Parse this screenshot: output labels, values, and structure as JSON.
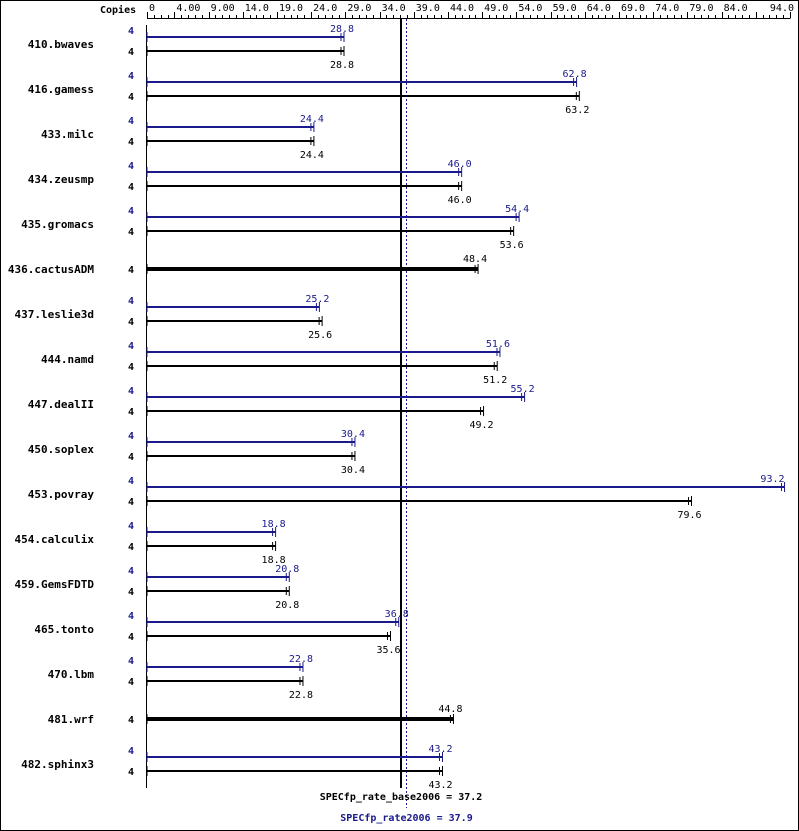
{
  "chart_data": {
    "type": "bar",
    "orientation": "horizontal",
    "copies_header": "Copies",
    "xlim": [
      0,
      94
    ],
    "ticks": [
      {
        "value": 0,
        "label": "0"
      },
      {
        "value": 4,
        "label": "4.00"
      },
      {
        "value": 9,
        "label": "9.00"
      },
      {
        "value": 14,
        "label": "14.0"
      },
      {
        "value": 19,
        "label": "19.0"
      },
      {
        "value": 24,
        "label": "24.0"
      },
      {
        "value": 29,
        "label": "29.0"
      },
      {
        "value": 34,
        "label": "34.0"
      },
      {
        "value": 39,
        "label": "39.0"
      },
      {
        "value": 44,
        "label": "44.0"
      },
      {
        "value": 49,
        "label": "49.0"
      },
      {
        "value": 54,
        "label": "54.0"
      },
      {
        "value": 59,
        "label": "59.0"
      },
      {
        "value": 64,
        "label": "64.0"
      },
      {
        "value": 69,
        "label": "69.0"
      },
      {
        "value": 74,
        "label": "74.0"
      },
      {
        "value": 79,
        "label": "79.0"
      },
      {
        "value": 84,
        "label": "84.0"
      },
      {
        "value": 94,
        "label": "94.0"
      }
    ],
    "colors": {
      "peak": "#1a1a8c",
      "base": "#000000"
    },
    "benchmarks": [
      {
        "name": "410.bwaves",
        "peak": {
          "copies": "4",
          "value": 28.8,
          "label": "28.8"
        },
        "base": {
          "copies": "4",
          "value": 28.8,
          "label": "28.8"
        }
      },
      {
        "name": "416.gamess",
        "peak": {
          "copies": "4",
          "value": 62.8,
          "label": "62.8"
        },
        "base": {
          "copies": "4",
          "value": 63.2,
          "label": "63.2"
        }
      },
      {
        "name": "433.milc",
        "peak": {
          "copies": "4",
          "value": 24.4,
          "label": "24.4"
        },
        "base": {
          "copies": "4",
          "value": 24.4,
          "label": "24.4"
        }
      },
      {
        "name": "434.zeusmp",
        "peak": {
          "copies": "4",
          "value": 46.0,
          "label": "46.0"
        },
        "base": {
          "copies": "4",
          "value": 46.0,
          "label": "46.0"
        }
      },
      {
        "name": "435.gromacs",
        "peak": {
          "copies": "4",
          "value": 54.4,
          "label": "54.4"
        },
        "base": {
          "copies": "4",
          "value": 53.6,
          "label": "53.6"
        }
      },
      {
        "name": "436.cactusADM",
        "peak": null,
        "base": {
          "copies": "4",
          "value": 48.4,
          "label": "48.4"
        }
      },
      {
        "name": "437.leslie3d",
        "peak": {
          "copies": "4",
          "value": 25.2,
          "label": "25.2"
        },
        "base": {
          "copies": "4",
          "value": 25.6,
          "label": "25.6"
        }
      },
      {
        "name": "444.namd",
        "peak": {
          "copies": "4",
          "value": 51.6,
          "label": "51.6"
        },
        "base": {
          "copies": "4",
          "value": 51.2,
          "label": "51.2"
        }
      },
      {
        "name": "447.dealII",
        "peak": {
          "copies": "4",
          "value": 55.2,
          "label": "55.2"
        },
        "base": {
          "copies": "4",
          "value": 49.2,
          "label": "49.2"
        }
      },
      {
        "name": "450.soplex",
        "peak": {
          "copies": "4",
          "value": 30.4,
          "label": "30.4"
        },
        "base": {
          "copies": "4",
          "value": 30.4,
          "label": "30.4"
        }
      },
      {
        "name": "453.povray",
        "peak": {
          "copies": "4",
          "value": 93.2,
          "label": "93.2"
        },
        "base": {
          "copies": "4",
          "value": 79.6,
          "label": "79.6"
        }
      },
      {
        "name": "454.calculix",
        "peak": {
          "copies": "4",
          "value": 18.8,
          "label": "18.8"
        },
        "base": {
          "copies": "4",
          "value": 18.8,
          "label": "18.8"
        }
      },
      {
        "name": "459.GemsFDTD",
        "peak": {
          "copies": "4",
          "value": 20.8,
          "label": "20.8"
        },
        "base": {
          "copies": "4",
          "value": 20.8,
          "label": "20.8"
        }
      },
      {
        "name": "465.tonto",
        "peak": {
          "copies": "4",
          "value": 36.8,
          "label": "36.8"
        },
        "base": {
          "copies": "4",
          "value": 35.6,
          "label": "35.6"
        }
      },
      {
        "name": "470.lbm",
        "peak": {
          "copies": "4",
          "value": 22.8,
          "label": "22.8"
        },
        "base": {
          "copies": "4",
          "value": 22.8,
          "label": "22.8"
        }
      },
      {
        "name": "481.wrf",
        "peak": null,
        "base": {
          "copies": "4",
          "value": 44.8,
          "label": "44.8"
        }
      },
      {
        "name": "482.sphinx3",
        "peak": {
          "copies": "4",
          "value": 43.2,
          "label": "43.2"
        },
        "base": {
          "copies": "4",
          "value": 43.2,
          "label": "43.2"
        }
      }
    ],
    "summary": {
      "base": {
        "text": "SPECfp_rate_base2006 = 37.2",
        "value": 37.2
      },
      "peak": {
        "text": "SPECfp_rate2006 = 37.9",
        "value": 37.9
      }
    }
  }
}
